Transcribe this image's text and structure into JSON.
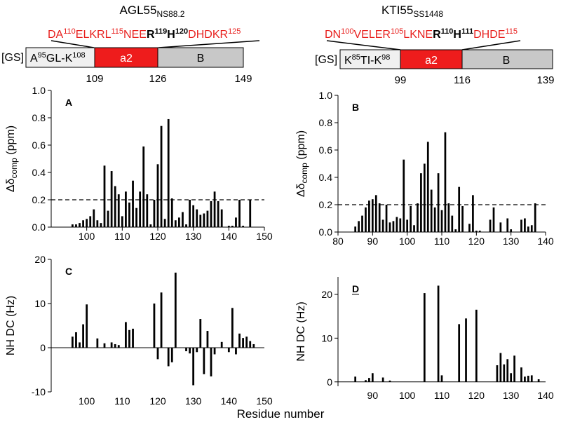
{
  "footer": {
    "x_axis_label": "Residue number"
  },
  "constructs": [
    {
      "title": "AGL55",
      "title_sub": "NS88.2",
      "seq": [
        {
          "t": "DA",
          "c": "red",
          "sup": false
        },
        {
          "t": "110",
          "c": "red",
          "sup": true
        },
        {
          "t": "ELKRL",
          "c": "red",
          "sup": false
        },
        {
          "t": "115",
          "c": "red",
          "sup": true
        },
        {
          "t": "NEE",
          "c": "red",
          "sup": false
        },
        {
          "t": "R",
          "c": "black",
          "sup": false,
          "bold": true
        },
        {
          "t": "119",
          "c": "black",
          "sup": true,
          "bold": true
        },
        {
          "t": "H",
          "c": "black",
          "sup": false,
          "bold": true
        },
        {
          "t": "120",
          "c": "black",
          "sup": true,
          "bold": true
        },
        {
          "t": "DHDKR",
          "c": "red",
          "sup": false
        },
        {
          "t": "125",
          "c": "red",
          "sup": true
        }
      ],
      "gs": "[GS]",
      "seg1": [
        {
          "t": "A",
          "sup": false
        },
        {
          "t": "95",
          "sup": true
        },
        {
          "t": "GL-K",
          "sup": false
        },
        {
          "t": "108",
          "sup": true
        }
      ],
      "seg2": "a2",
      "seg3": "B",
      "ticks": [
        "109",
        "126",
        "149"
      ]
    },
    {
      "title": "KTI55",
      "title_sub": "SS1448",
      "seq": [
        {
          "t": "DN",
          "c": "red",
          "sup": false
        },
        {
          "t": "100",
          "c": "red",
          "sup": true
        },
        {
          "t": "VELER",
          "c": "red",
          "sup": false
        },
        {
          "t": "105",
          "c": "red",
          "sup": true
        },
        {
          "t": "LKNE",
          "c": "red",
          "sup": false
        },
        {
          "t": "R",
          "c": "black",
          "sup": false,
          "bold": true
        },
        {
          "t": "110",
          "c": "black",
          "sup": true,
          "bold": true
        },
        {
          "t": "H",
          "c": "black",
          "sup": false,
          "bold": true
        },
        {
          "t": "111",
          "c": "black",
          "sup": true,
          "bold": true
        },
        {
          "t": "DHDE",
          "c": "red",
          "sup": false
        },
        {
          "t": "115",
          "c": "red",
          "sup": true
        }
      ],
      "gs": "[GS]",
      "seg1": [
        {
          "t": "K",
          "sup": false
        },
        {
          "t": "85",
          "sup": true
        },
        {
          "t": "TI-K",
          "sup": false
        },
        {
          "t": "98",
          "sup": true
        }
      ],
      "seg2": "a2",
      "seg3": "B",
      "ticks": [
        "99",
        "116",
        "139"
      ]
    }
  ],
  "colors": {
    "red": "#ee1c1c",
    "seq_red": "#e8201e",
    "bar": "#000000",
    "seg_grey": "#c8c8c8",
    "seg_light": "#f0f0f0"
  },
  "chart_data": [
    {
      "id": "A",
      "type": "bar",
      "panel_label": "A",
      "ylabel_main": "Δδ",
      "ylabel_sub": "comp",
      "ylabel_unit": " (ppm)",
      "xlim": [
        90,
        150
      ],
      "ylim": [
        0,
        1.0
      ],
      "xticks": [
        100,
        110,
        120,
        130,
        140,
        150
      ],
      "yticks": [
        0.0,
        0.2,
        0.4,
        0.6,
        0.8,
        1.0
      ],
      "ytick_labels": [
        "0.0",
        "0.2",
        "0.4",
        "0.6",
        "0.8",
        "1.0"
      ],
      "threshold": 0.2,
      "x": [
        96,
        97,
        98,
        99,
        100,
        101,
        102,
        103,
        104,
        105,
        106,
        107,
        108,
        109,
        110,
        111,
        112,
        113,
        114,
        115,
        116,
        117,
        118,
        119,
        120,
        121,
        122,
        123,
        124,
        125,
        126,
        127,
        128,
        129,
        130,
        131,
        132,
        133,
        134,
        135,
        136,
        137,
        138,
        140,
        141,
        142,
        143,
        144,
        146
      ],
      "values": [
        0.02,
        0.02,
        0.03,
        0.05,
        0.06,
        0.08,
        0.13,
        0.05,
        0.03,
        0.45,
        0.12,
        0.41,
        0.3,
        0.24,
        0.08,
        0.26,
        0.18,
        0.34,
        0.14,
        0.26,
        0.59,
        0.24,
        0.02,
        0.2,
        0.46,
        0.74,
        0.06,
        0.79,
        0.21,
        0.05,
        0.07,
        0.11,
        0.02,
        0.2,
        0.16,
        0.13,
        0.09,
        0.1,
        0.12,
        0.19,
        0.26,
        0.19,
        0.13,
        0.01,
        0.01,
        0.07,
        0.2,
        0.01,
        0.2
      ]
    },
    {
      "id": "B",
      "type": "bar",
      "panel_label": "B",
      "ylabel_main": "Δδ",
      "ylabel_sub": "comp",
      "ylabel_unit": " (ppm)",
      "xlim": [
        80,
        140
      ],
      "ylim": [
        0,
        1.0
      ],
      "xticks": [
        80,
        90,
        100,
        110,
        120,
        130,
        140
      ],
      "yticks": [
        0.0,
        0.2,
        0.4,
        0.6,
        0.8,
        1.0
      ],
      "ytick_labels": [
        "0.0",
        "0.2",
        "0.4",
        "0.6",
        "0.8",
        "1.0"
      ],
      "threshold": 0.2,
      "x": [
        85,
        86,
        87,
        88,
        89,
        90,
        91,
        92,
        93,
        94,
        95,
        96,
        97,
        98,
        99,
        100,
        101,
        102,
        103,
        104,
        105,
        106,
        107,
        108,
        109,
        110,
        111,
        112,
        113,
        114,
        115,
        116,
        118,
        119,
        120,
        121,
        124,
        125,
        127,
        129,
        130,
        133,
        134,
        135,
        136,
        137
      ],
      "values": [
        0.04,
        0.08,
        0.12,
        0.18,
        0.23,
        0.24,
        0.27,
        0.21,
        0.09,
        0.2,
        0.07,
        0.08,
        0.11,
        0.1,
        0.53,
        0.09,
        0.19,
        0.05,
        0.21,
        0.43,
        0.5,
        0.66,
        0.31,
        0.18,
        0.43,
        0.16,
        0.73,
        0.21,
        0.12,
        0.02,
        0.33,
        0.19,
        0.06,
        0.27,
        0.01,
        0.01,
        0.09,
        0.18,
        0.07,
        0.1,
        0.02,
        0.09,
        0.1,
        0.04,
        0.05,
        0.21
      ]
    },
    {
      "id": "C",
      "type": "bar",
      "panel_label": "C",
      "ylabel_main": "NH DC (Hz)",
      "ylabel_sub": "",
      "ylabel_unit": "",
      "xlim": [
        90,
        150
      ],
      "ylim": [
        -10,
        20
      ],
      "xticks": [
        100,
        110,
        120,
        130,
        140,
        150
      ],
      "yticks": [
        -10,
        0,
        10,
        20
      ],
      "ytick_labels": [
        "-10",
        "0",
        "10",
        "20"
      ],
      "x": [
        96,
        97,
        98,
        99,
        100,
        103,
        105,
        107,
        108,
        109,
        111,
        112,
        113,
        119,
        120,
        121,
        123,
        124,
        125,
        128,
        129,
        130,
        131,
        132,
        133,
        134,
        135,
        136,
        138,
        140,
        141,
        142,
        143,
        144,
        145,
        146,
        147
      ],
      "values": [
        2.5,
        3.5,
        1.2,
        5.3,
        9.8,
        2.1,
        1.0,
        1.2,
        0.8,
        0.6,
        5.8,
        4.0,
        4.3,
        10.0,
        -2.6,
        12.5,
        -4.2,
        -3.3,
        17.0,
        -0.8,
        -1.3,
        -8.5,
        -1.0,
        6.5,
        -6.0,
        3.8,
        -6.5,
        -1.5,
        1.3,
        -1.0,
        9.0,
        -1.5,
        3.2,
        2.2,
        2.5,
        1.5,
        0.8
      ]
    },
    {
      "id": "D",
      "type": "bar",
      "panel_label": "D",
      "ylabel_main": "NH DC (Hz)",
      "ylabel_sub": "",
      "ylabel_unit": "",
      "xlim": [
        80,
        140
      ],
      "ylim": [
        -1,
        24
      ],
      "xticks": [
        90,
        100,
        110,
        120,
        130,
        140
      ],
      "yticks": [
        0,
        10,
        20
      ],
      "ytick_labels": [
        "0",
        "10",
        "20"
      ],
      "x": [
        85,
        88,
        89,
        90,
        93,
        95,
        105,
        109,
        110,
        115,
        117,
        120,
        126,
        127,
        128,
        129,
        130,
        131,
        133,
        134,
        135,
        136,
        138
      ],
      "values": [
        1.2,
        0.4,
        0.9,
        2.0,
        1.0,
        0.3,
        20.3,
        22.0,
        1.5,
        13.2,
        14.5,
        16.5,
        3.8,
        6.6,
        4.0,
        5.2,
        2.0,
        6.0,
        3.3,
        1.2,
        1.4,
        1.5,
        0.6
      ]
    }
  ]
}
